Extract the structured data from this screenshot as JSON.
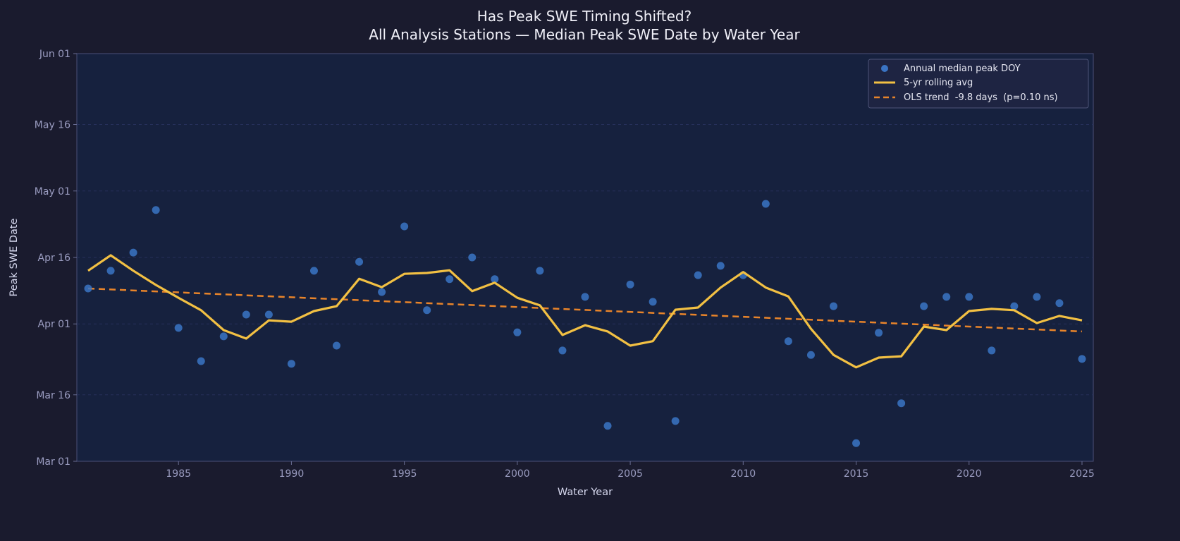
{
  "colors": {
    "background": "#1a1b2e",
    "plot_bg": "#16213e",
    "points": "#3a74c4",
    "rolling": "#f2c043",
    "trend": "#e8842a"
  },
  "chart_data": {
    "type": "line",
    "title": "Has Peak SWE Timing Shifted?",
    "subtitle": "All Analysis Stations — Median Peak SWE Date by Water Year",
    "xlabel": "Water Year",
    "ylabel": "Peak SWE Date",
    "xlim": [
      1980.5,
      2025.5
    ],
    "ylim_doy": [
      60,
      152
    ],
    "x_ticks": [
      1985,
      1990,
      1995,
      2000,
      2005,
      2010,
      2015,
      2020,
      2025
    ],
    "y_ticks": [
      {
        "doy": 60,
        "label": "Mar 01"
      },
      {
        "doy": 75,
        "label": "Mar 16"
      },
      {
        "doy": 91,
        "label": "Apr 01"
      },
      {
        "doy": 106,
        "label": "Apr 16"
      },
      {
        "doy": 121,
        "label": "May 01"
      },
      {
        "doy": 136,
        "label": "May 16"
      },
      {
        "doy": 152,
        "label": "Jun 01"
      }
    ],
    "grid": "horizontal dashed",
    "legend_position": "top-right",
    "x": [
      1981,
      1982,
      1983,
      1984,
      1985,
      1986,
      1987,
      1988,
      1989,
      1990,
      1991,
      1992,
      1993,
      1994,
      1995,
      1996,
      1997,
      1998,
      1999,
      2000,
      2001,
      2002,
      2003,
      2004,
      2005,
      2006,
      2007,
      2008,
      2009,
      2010,
      2011,
      2012,
      2013,
      2014,
      2015,
      2016,
      2017,
      2018,
      2019,
      2020,
      2021,
      2022,
      2023,
      2024,
      2025
    ],
    "series": [
      {
        "name": "Annual median peak DOY",
        "kind": "scatter",
        "values": [
          99.0,
          103.0,
          107.1,
          116.7,
          90.1,
          82.6,
          88.2,
          93.1,
          93.1,
          82.0,
          103.0,
          86.1,
          105.0,
          98.2,
          113.0,
          94.1,
          101.1,
          106.0,
          101.1,
          89.1,
          103.0,
          85.0,
          97.1,
          68.0,
          99.9,
          96.0,
          69.1,
          102.0,
          104.1,
          102.0,
          118.1,
          87.1,
          84.0,
          95.0,
          64.1,
          89.0,
          73.1,
          95.0,
          97.1,
          97.1,
          85.0,
          95.0,
          97.1,
          95.7,
          83.1
        ]
      },
      {
        "name": "5-yr rolling avg",
        "kind": "line",
        "values": [
          103.0,
          106.5,
          103.0,
          99.8,
          96.9,
          94.1,
          89.6,
          87.7,
          91.8,
          91.5,
          93.9,
          95.0,
          101.2,
          99.3,
          102.3,
          102.5,
          103.1,
          98.4,
          100.3,
          96.9,
          95.2,
          88.5,
          90.7,
          89.3,
          86.1,
          87.1,
          94.2,
          94.7,
          99.2,
          102.7,
          99.2,
          97.2,
          89.9,
          84.0,
          81.2,
          83.4,
          83.7,
          90.4,
          89.6,
          93.9,
          94.4,
          94.1,
          91.2,
          92.8,
          91.8
        ]
      },
      {
        "name": "OLS trend  -9.8 days  (p=0.10 ns)",
        "kind": "dashed-line",
        "start": {
          "x": 1981,
          "y": 99.0
        },
        "end": {
          "x": 2025,
          "y": 89.3
        }
      }
    ]
  }
}
